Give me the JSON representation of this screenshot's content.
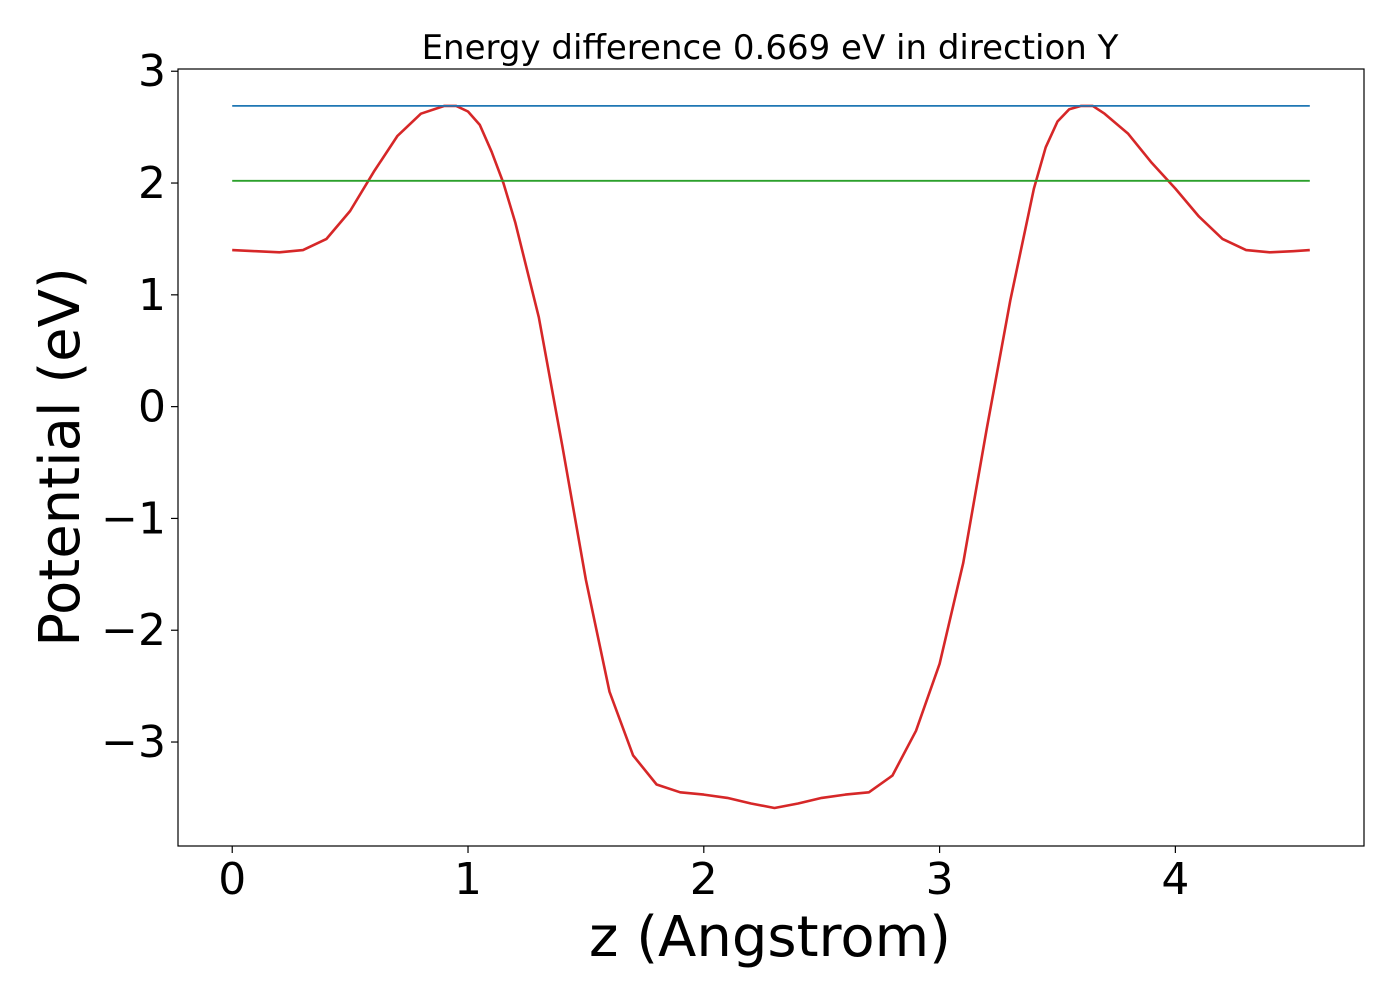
{
  "chart_data": {
    "type": "line",
    "title": "Energy difference 0.669 eV in direction Y",
    "xlabel": "z (Angstrom)",
    "ylabel": "Potential (eV)",
    "xlim": [
      -0.23,
      4.8
    ],
    "ylim": [
      -3.93,
      3.02
    ],
    "xticks": [
      {
        "value": 0,
        "label": "0"
      },
      {
        "value": 1,
        "label": "1"
      },
      {
        "value": 2,
        "label": "2"
      },
      {
        "value": 3,
        "label": "3"
      },
      {
        "value": 4,
        "label": "4"
      }
    ],
    "yticks": [
      {
        "value": 3,
        "label": "3"
      },
      {
        "value": 2,
        "label": "2"
      },
      {
        "value": 1,
        "label": "1"
      },
      {
        "value": 0,
        "label": "0"
      },
      {
        "value": -1,
        "label": "−1"
      },
      {
        "value": -2,
        "label": "−2"
      },
      {
        "value": -3,
        "label": "−3"
      }
    ],
    "grid": false,
    "legend": "none",
    "series": [
      {
        "color": "#d62728",
        "x": [
          0.0,
          0.1,
          0.2,
          0.3,
          0.4,
          0.5,
          0.6,
          0.7,
          0.8,
          0.9,
          0.95,
          1.0,
          1.05,
          1.1,
          1.15,
          1.2,
          1.3,
          1.4,
          1.5,
          1.6,
          1.7,
          1.8,
          1.9,
          2.0,
          2.1,
          2.2,
          2.3,
          2.4,
          2.5,
          2.6,
          2.7,
          2.8,
          2.9,
          3.0,
          3.1,
          3.2,
          3.3,
          3.4,
          3.45,
          3.5,
          3.55,
          3.6,
          3.65,
          3.7,
          3.8,
          3.9,
          4.0,
          4.1,
          4.2,
          4.3,
          4.4,
          4.5,
          4.57
        ],
        "y": [
          1.4,
          1.39,
          1.38,
          1.4,
          1.5,
          1.75,
          2.1,
          2.42,
          2.62,
          2.69,
          2.69,
          2.64,
          2.52,
          2.28,
          2.0,
          1.65,
          0.8,
          -0.35,
          -1.55,
          -2.55,
          -3.12,
          -3.38,
          -3.45,
          -3.47,
          -3.5,
          -3.55,
          -3.59,
          -3.55,
          -3.5,
          -3.47,
          -3.45,
          -3.3,
          -2.9,
          -2.3,
          -1.4,
          -0.2,
          0.95,
          1.95,
          2.32,
          2.55,
          2.66,
          2.69,
          2.69,
          2.62,
          2.44,
          2.18,
          1.95,
          1.7,
          1.5,
          1.4,
          1.38,
          1.39,
          1.4
        ]
      },
      {
        "color": "#1f77b4",
        "x": [
          0.0,
          4.57
        ],
        "y": [
          2.69,
          2.69
        ]
      },
      {
        "color": "#2ca02c",
        "x": [
          0.0,
          4.57
        ],
        "y": [
          2.02,
          2.02
        ]
      }
    ]
  }
}
